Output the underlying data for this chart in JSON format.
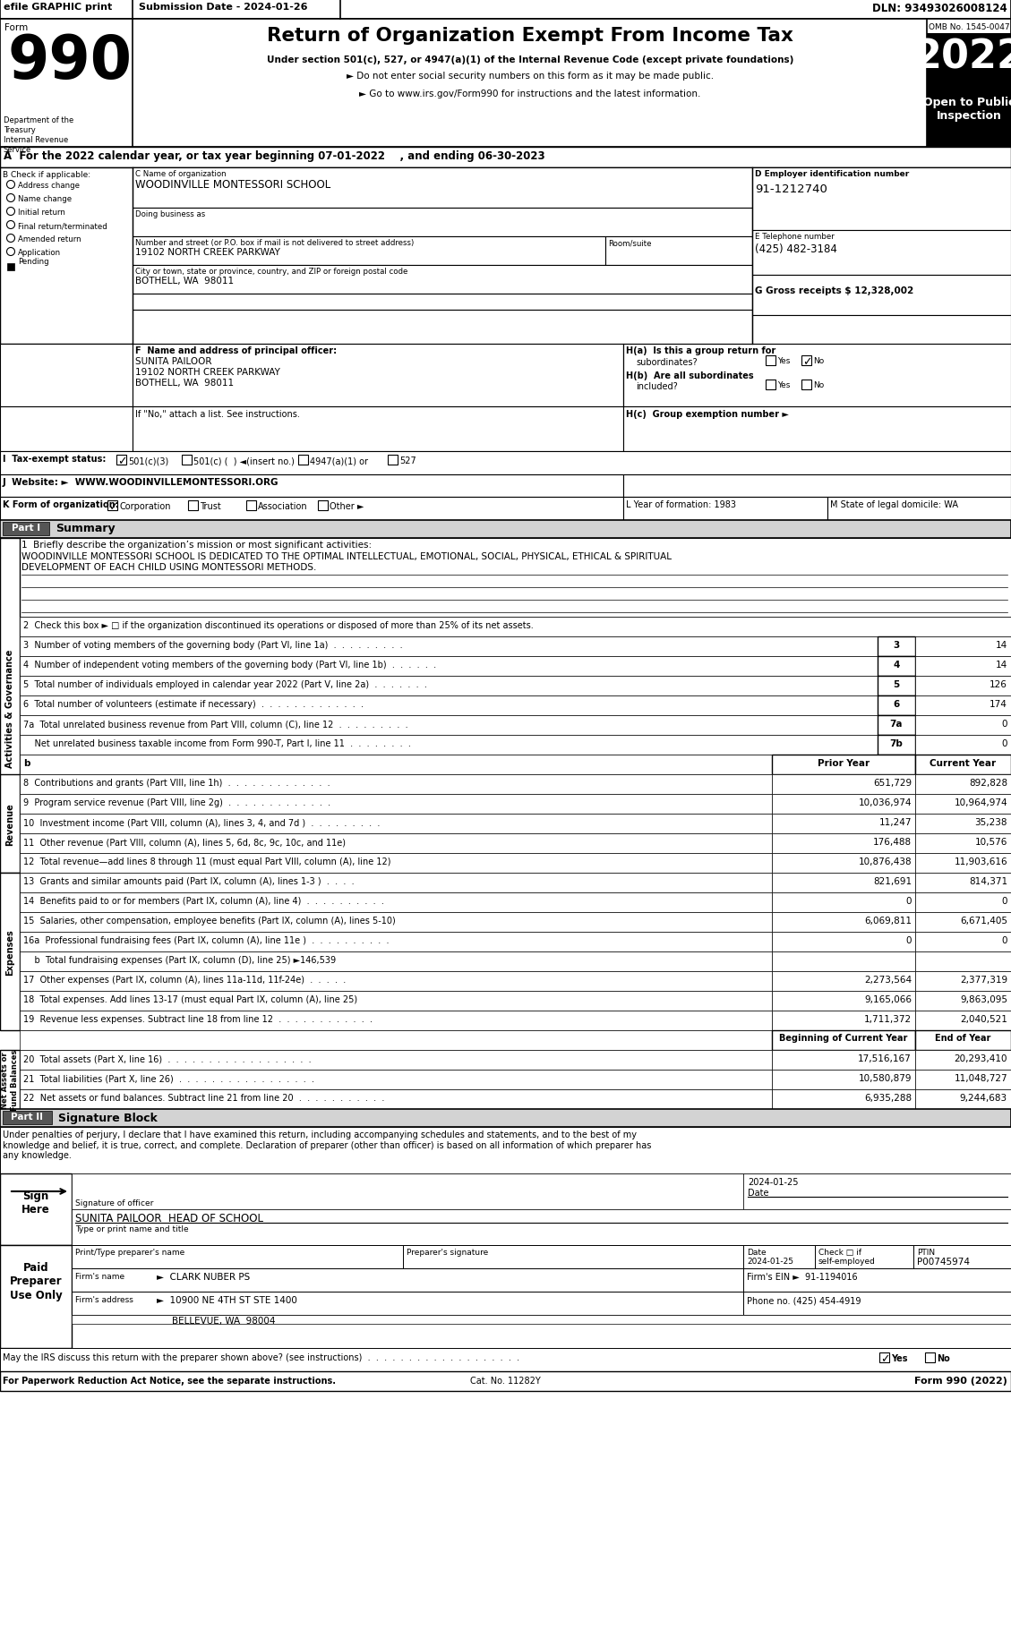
{
  "title": "Return of Organization Exempt From Income Tax",
  "form_number": "990",
  "year": "2022",
  "omb": "OMB No. 1545-0047",
  "efile_text": "efile GRAPHIC print",
  "submission_date": "Submission Date - 2024-01-26",
  "dln": "DLN: 93493026008124",
  "subtitle1": "Under section 501(c), 527, or 4947(a)(1) of the Internal Revenue Code (except private foundations)",
  "subtitle2": "► Do not enter social security numbers on this form as it may be made public.",
  "subtitle3": "► Go to www.irs.gov/Form990 for instructions and the latest information.",
  "line_A": "A  For the 2022 calendar year, or tax year beginning 07-01-2022    , and ending 06-30-2023",
  "B_label": "B Check if applicable:",
  "B_items": [
    "Address change",
    "Name change",
    "Initial return",
    "Final return/terminated",
    "Amended return",
    "Application\nPending"
  ],
  "C_label": "C Name of organization",
  "org_name": "WOODINVILLE MONTESSORI SCHOOL",
  "dba_label": "Doing business as",
  "street_label": "Number and street (or P.O. box if mail is not delivered to street address)",
  "street": "19102 NORTH CREEK PARKWAY",
  "room_label": "Room/suite",
  "city_label": "City or town, state or province, country, and ZIP or foreign postal code",
  "city": "BOTHELL, WA  98011",
  "D_label": "D Employer identification number",
  "ein": "91-1212740",
  "E_label": "E Telephone number",
  "phone": "(425) 482-3184",
  "G_label": "G Gross receipts $ 12,328,002",
  "F_label": "F  Name and address of principal officer:",
  "officer_name": "SUNITA PAILOOR",
  "officer_street": "19102 NORTH CREEK PARKWAY",
  "officer_city": "BOTHELL, WA  98011",
  "J_label": "J  Website: ►  WWW.WOODINVILLEMONTESSORI.ORG",
  "K_label": "K Form of organization:",
  "L_label": "L Year of formation: 1983",
  "M_label": "M State of legal domicile: WA",
  "mission_label": "1  Briefly describe the organization’s mission or most significant activities:",
  "mission_text1": "WOODINVILLE MONTESSORI SCHOOL IS DEDICATED TO THE OPTIMAL INTELLECTUAL, EMOTIONAL, SOCIAL, PHYSICAL, ETHICAL & SPIRITUAL",
  "mission_text2": "DEVELOPMENT OF EACH CHILD USING MONTESSORI METHODS.",
  "line2": "2  Check this box ► □ if the organization discontinued its operations or disposed of more than 25% of its net assets.",
  "line3_text": "3  Number of voting members of the governing body (Part VI, line 1a)  .  .  .  .  .  .  .  .  .",
  "line3_box": "3",
  "line3_val": "14",
  "line4_text": "4  Number of independent voting members of the governing body (Part VI, line 1b)  .  .  .  .  .  .",
  "line4_box": "4",
  "line4_val": "14",
  "line5_text": "5  Total number of individuals employed in calendar year 2022 (Part V, line 2a)  .  .  .  .  .  .  .",
  "line5_box": "5",
  "line5_val": "126",
  "line6_text": "6  Total number of volunteers (estimate if necessary)  .  .  .  .  .  .  .  .  .  .  .  .  .",
  "line6_box": "6",
  "line6_val": "174",
  "line7a_text": "7a  Total unrelated business revenue from Part VIII, column (C), line 12  .  .  .  .  .  .  .  .  .",
  "line7a_box": "7a",
  "line7a_val": "0",
  "line7b_text": "    Net unrelated business taxable income from Form 990-T, Part I, line 11  .  .  .  .  .  .  .  .",
  "line7b_box": "7b",
  "line7b_val": "0",
  "prior_year": "Prior Year",
  "current_year": "Current Year",
  "line8_text": "8  Contributions and grants (Part VIII, line 1h)  .  .  .  .  .  .  .  .  .  .  .  .  .",
  "line8_prior": "651,729",
  "line8_curr": "892,828",
  "line9_text": "9  Program service revenue (Part VIII, line 2g)  .  .  .  .  .  .  .  .  .  .  .  .  .",
  "line9_prior": "10,036,974",
  "line9_curr": "10,964,974",
  "line10_text": "10  Investment income (Part VIII, column (A), lines 3, 4, and 7d )  .  .  .  .  .  .  .  .  .",
  "line10_prior": "11,247",
  "line10_curr": "35,238",
  "line11_text": "11  Other revenue (Part VIII, column (A), lines 5, 6d, 8c, 9c, 10c, and 11e)",
  "line11_prior": "176,488",
  "line11_curr": "10,576",
  "line12_text": "12  Total revenue—add lines 8 through 11 (must equal Part VIII, column (A), line 12)",
  "line12_prior": "10,876,438",
  "line12_curr": "11,903,616",
  "line13_text": "13  Grants and similar amounts paid (Part IX, column (A), lines 1-3 )  .  .  .  .",
  "line13_prior": "821,691",
  "line13_curr": "814,371",
  "line14_text": "14  Benefits paid to or for members (Part IX, column (A), line 4)  .  .  .  .  .  .  .  .  .  .",
  "line14_prior": "0",
  "line14_curr": "0",
  "line15_text": "15  Salaries, other compensation, employee benefits (Part IX, column (A), lines 5-10)",
  "line15_prior": "6,069,811",
  "line15_curr": "6,671,405",
  "line16a_text": "16a  Professional fundraising fees (Part IX, column (A), line 11e )  .  .  .  .  .  .  .  .  .  .",
  "line16a_prior": "0",
  "line16a_curr": "0",
  "line16b_text": "    b  Total fundraising expenses (Part IX, column (D), line 25) ►146,539",
  "line17_text": "17  Other expenses (Part IX, column (A), lines 11a-11d, 11f-24e)  .  .  .  .  .",
  "line17_prior": "2,273,564",
  "line17_curr": "2,377,319",
  "line18_text": "18  Total expenses. Add lines 13-17 (must equal Part IX, column (A), line 25)",
  "line18_prior": "9,165,066",
  "line18_curr": "9,863,095",
  "line19_text": "19  Revenue less expenses. Subtract line 18 from line 12  .  .  .  .  .  .  .  .  .  .  .  .",
  "line19_prior": "1,711,372",
  "line19_curr": "2,040,521",
  "beg_curr_year": "Beginning of Current Year",
  "end_of_year": "End of Year",
  "line20_text": "20  Total assets (Part X, line 16)  .  .  .  .  .  .  .  .  .  .  .  .  .  .  .  .  .  .",
  "line20_beg": "17,516,167",
  "line20_end": "20,293,410",
  "line21_text": "21  Total liabilities (Part X, line 26)  .  .  .  .  .  .  .  .  .  .  .  .  .  .  .  .  .",
  "line21_beg": "10,580,879",
  "line21_end": "11,048,727",
  "line22_text": "22  Net assets or fund balances. Subtract line 21 from line 20  .  .  .  .  .  .  .  .  .  .  .",
  "line22_beg": "6,935,288",
  "line22_end": "9,244,683",
  "sig_text": "Under penalties of perjury, I declare that I have examined this return, including accompanying schedules and statements, and to the best of my\nknowledge and belief, it is true, correct, and complete. Declaration of preparer (other than officer) is based on all information of which preparer has\nany knowledge.",
  "sig_officer": "SUNITA PAILOOR  HEAD OF SCHOOL",
  "sig_title_label": "Type or print name and title",
  "preparer_name_label": "Print/Type preparer's name",
  "preparer_sig_label": "Preparer's signature",
  "date_sign": "2024-01-25",
  "ptin": "P00745974",
  "firm_name": "►  CLARK NUBER PS",
  "firms_ein": "91-1194016",
  "firm_addr": "►  10900 NE 4TH ST STE 1400",
  "firm_city": "BELLEVUE, WA  98004",
  "phone2": "(425) 454-4919",
  "discuss_text": "May the IRS discuss this return with the preparer shown above? (see instructions)  .  .  .  .  .  .  .  .  .  .  .  .  .  .  .  .  .  .  .",
  "footer": "For Paperwork Reduction Act Notice, see the separate instructions.",
  "cat_no": "Cat. No. 11282Y",
  "form_footer": "Form 990 (2022)"
}
